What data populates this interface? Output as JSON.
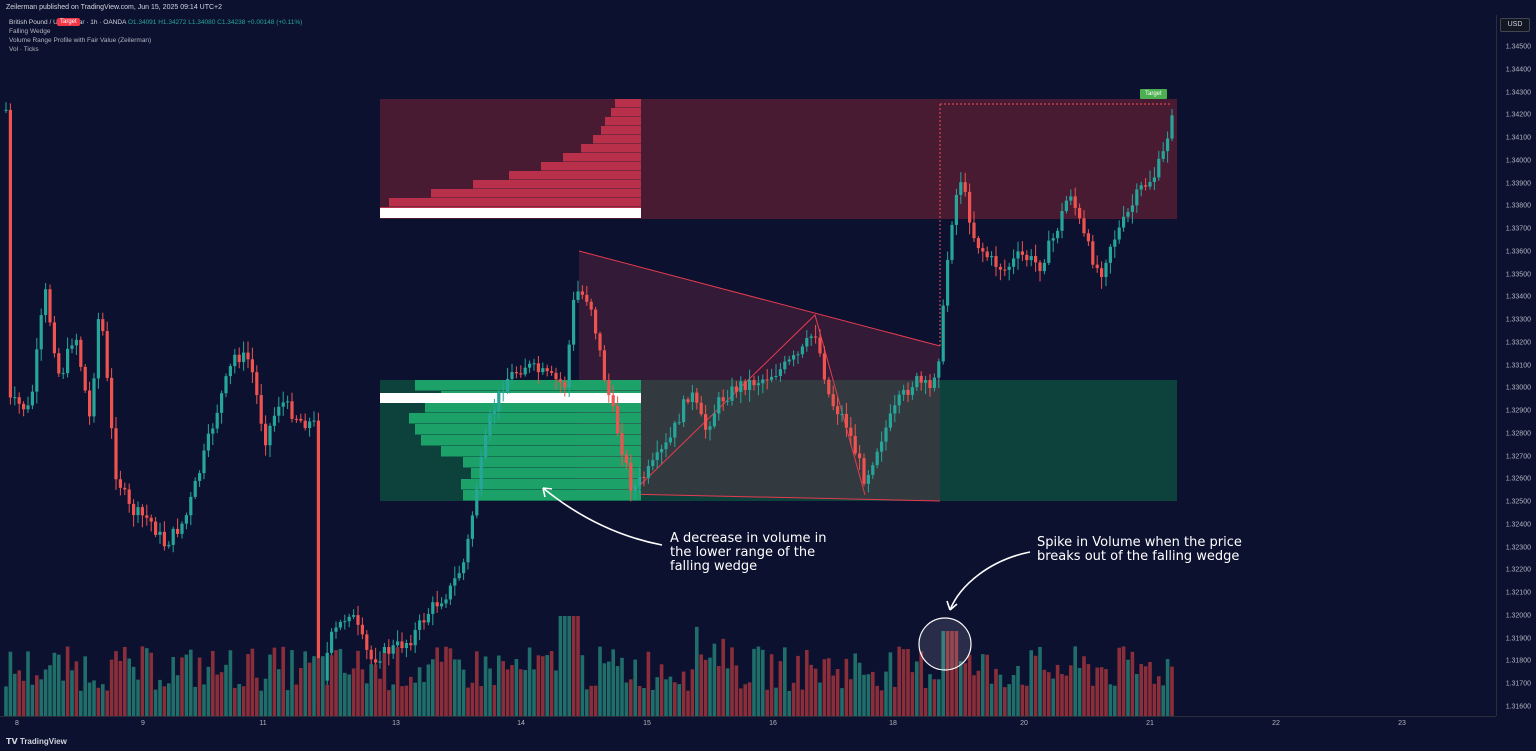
{
  "header": {
    "publisher": "Zeilerman published on TradingView.com, Jun 15, 2025 09:14 UTC+2"
  },
  "legend": {
    "symbol": "British Pound / U.S. Dollar · 1h · OANDA",
    "ohlc": "O1.34091  H1.34272  L1.34080  C1.34238  +0.00148 (+0.11%)",
    "target_tag": "Target",
    "indicators": [
      "Falling Wedge",
      "Volume Range Profile with Fair Value (Zeilerman)",
      "Vol · Ticks"
    ]
  },
  "price_axis": {
    "currency": "USD",
    "labels": [
      "1.34500",
      "1.34400",
      "1.34300",
      "1.34200",
      "1.34100",
      "1.34000",
      "1.33900",
      "1.33800",
      "1.33700",
      "1.33600",
      "1.33500",
      "1.33400",
      "1.33300",
      "1.33200",
      "1.33100",
      "1.33000",
      "1.32900",
      "1.32800",
      "1.32700",
      "1.32600",
      "1.32500",
      "1.32400",
      "1.32300",
      "1.32200",
      "1.32100",
      "1.32000",
      "1.31900",
      "1.31800",
      "1.31700",
      "1.31600"
    ]
  },
  "time_axis": {
    "labels": [
      "8",
      "9",
      "11",
      "13",
      "14",
      "15",
      "16",
      "18",
      "20",
      "21",
      "22",
      "23"
    ]
  },
  "annotations": {
    "target_label": "Target",
    "decrease_text": [
      "A decrease in volume in",
      "the lower range of the",
      "falling wedge"
    ],
    "spike_text": [
      "Spike in Volume when the price",
      "breaks out of the falling wedge"
    ]
  },
  "footer": {
    "brand": "TradingView"
  },
  "colors": {
    "up": "#26a69a",
    "down": "#ef5350",
    "supply_zone": "#5c1f33",
    "demand_zone": "#0e4a3e",
    "wedge": "#e53b4e"
  }
}
